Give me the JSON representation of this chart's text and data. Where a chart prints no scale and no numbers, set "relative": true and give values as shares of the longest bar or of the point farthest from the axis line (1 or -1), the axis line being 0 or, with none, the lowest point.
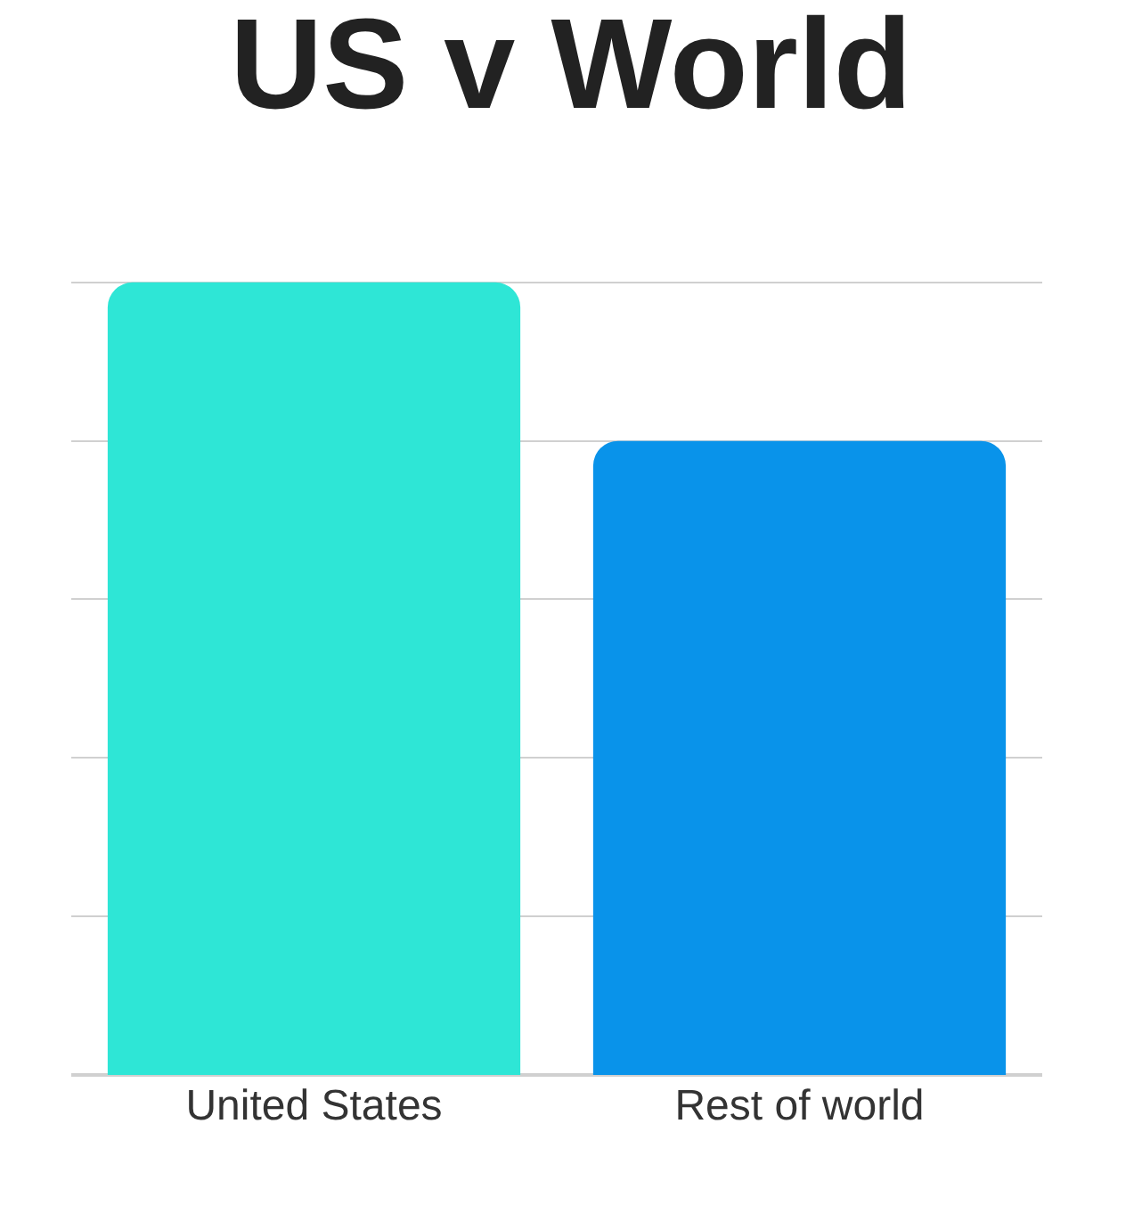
{
  "chart_data": {
    "type": "bar",
    "title": "US v World",
    "relative": true,
    "grid": "y",
    "categories": [
      "United States",
      "Rest of world"
    ],
    "values": [
      1,
      0.8
    ],
    "colors": [
      "#2ee6d6",
      "#0993ea"
    ]
  }
}
